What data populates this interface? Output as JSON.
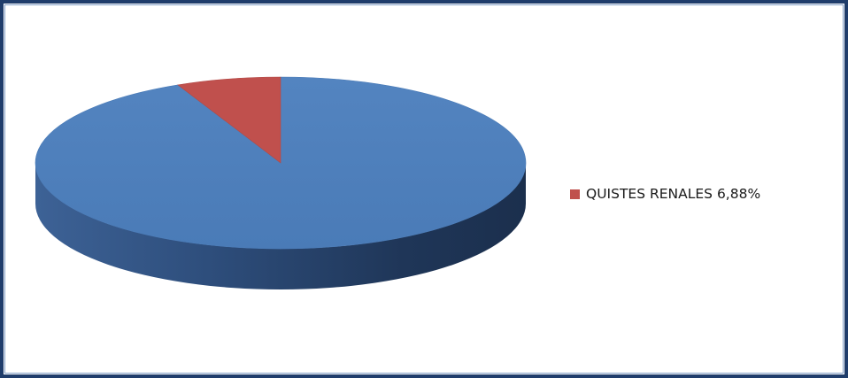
{
  "chart_data": {
    "type": "pie",
    "three_d": true,
    "slices": [
      {
        "name": "",
        "value": 93.12,
        "color": "#4f81bd"
      },
      {
        "name": "QUISTES RENALES",
        "value": 6.88,
        "color": "#c0504d"
      }
    ],
    "legend": {
      "placement": "right",
      "entries": [
        {
          "label": "QUISTES RENALES 6,88%",
          "color": "#c0504d"
        }
      ]
    }
  }
}
